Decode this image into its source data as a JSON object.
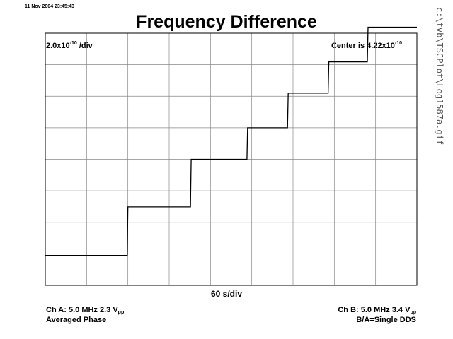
{
  "header": {
    "timestamp": "11 Nov 2004 23:45:43",
    "title": "Frequency Difference"
  },
  "scale": {
    "y_per_div_base": "2.0x10",
    "y_per_div_exp": "-10",
    "y_per_div_suffix": " /div",
    "center_prefix": "Center is 4.22x10",
    "center_exp": "-10"
  },
  "side_text": "c:\\tvb\\TSCPlot\\Log1587a.gif",
  "x_scale": "60 s/div",
  "channels": {
    "a_main": "Ch A: 5.0 MHz 2.3 V",
    "a_sub": "pp",
    "a_mode": "Averaged Phase",
    "b_main": "Ch B: 5.0 MHz 3.4 V",
    "b_sub": "pp",
    "b_mode": "B/A=Single DDS"
  },
  "chart_data": {
    "type": "line",
    "grid": true,
    "x_divisions": 9,
    "y_divisions": 8,
    "x_unit": "s",
    "x_per_div": 60,
    "y_per_div": 2e-10,
    "y_center": 4.22e-10,
    "xlim": [
      0,
      540
    ],
    "ylim": [
      -3.78e-10,
      1.222e-09
    ],
    "series": [
      {
        "x": [
          0,
          119,
          120,
          211,
          212,
          293,
          294,
          352,
          353,
          411,
          412,
          468,
          469,
          540
        ],
        "y": [
          -1.88e-10,
          -1.88e-10,
          1.2e-10,
          1.2e-10,
          4.22e-10,
          4.22e-10,
          6.22e-10,
          6.22e-10,
          8.42e-10,
          8.42e-10,
          1.04e-09,
          1.04e-09,
          1.26e-09,
          1.26e-09
        ]
      }
    ]
  }
}
